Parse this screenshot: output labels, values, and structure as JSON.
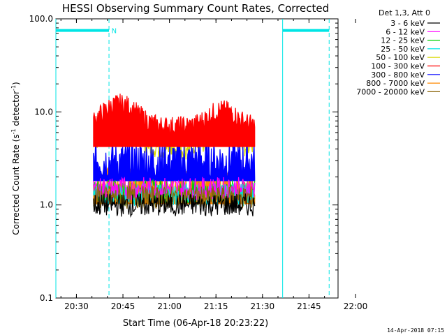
{
  "chart_data": {
    "type": "line",
    "title": "HESSI Observing Summary Count Rates, Corrected",
    "xlabel": "Start Time (06-Apr-18 20:23:22)",
    "ylabel": "Corrected Count Rate (s",
    "ylabel_sup1": "-1",
    "ylabel_mid": " detector",
    "ylabel_sup2": "-1",
    "ylabel_end": ")",
    "yscale": "log",
    "ylim": [
      0.1,
      100.0
    ],
    "xlim_minutes": [
      -6.63,
      84.37
    ],
    "x_ticks": [
      {
        "label": "20:30",
        "minutes": 0
      },
      {
        "label": "20:45",
        "minutes": 15
      },
      {
        "label": "21:00",
        "minutes": 30
      },
      {
        "label": "21:15",
        "minutes": 45
      },
      {
        "label": "21:30",
        "minutes": 60
      },
      {
        "label": "21:45",
        "minutes": 75
      },
      {
        "label": "22:00",
        "minutes": 90
      }
    ],
    "y_ticks": [
      {
        "label": "100.0",
        "value": 100
      },
      {
        "label": "10.0",
        "value": 10
      },
      {
        "label": "1.0",
        "value": 1
      },
      {
        "label": "0.1",
        "value": 0.1
      }
    ],
    "legend_title": "Det 1,3, Att 0",
    "legend_position": "top-right",
    "series": [
      {
        "name": "3 - 6 keV",
        "color": "#000000",
        "level": 1.0
      },
      {
        "name": "6 - 12 keV",
        "color": "#ff00ff",
        "level": 1.5
      },
      {
        "name": "12 - 25 keV",
        "color": "#00d000",
        "level": 1.4
      },
      {
        "name": "25 - 50 keV",
        "color": "#00e5e5",
        "level": 1.3
      },
      {
        "name": "50 - 100 keV",
        "color": "#d8d800",
        "level": 4.0
      },
      {
        "name": "100 - 300 keV",
        "color": "#ff0000",
        "level": 7.0
      },
      {
        "name": "300 - 800 keV",
        "color": "#0000ff",
        "level": 3.0
      },
      {
        "name": "800 - 7000 keV",
        "color": "#ff8800",
        "level": 1.7
      },
      {
        "name": "7000 - 20000 keV",
        "color": "#8b6508",
        "level": 1.2
      }
    ],
    "data_window_minutes": [
      5.5,
      57.5
    ],
    "annotations": [
      {
        "text": "N",
        "minutes": 11.3
      }
    ],
    "night_bars_minutes": [
      [
        -6.63,
        10.5
      ],
      [
        66.5,
        81.5
      ]
    ],
    "vertical_lines": [
      {
        "minutes": -6.63,
        "style": "solid"
      },
      {
        "minutes": 10.5,
        "style": "dashed"
      },
      {
        "minutes": 66.5,
        "style": "solid"
      },
      {
        "minutes": 81.5,
        "style": "dashed"
      }
    ]
  },
  "footer": "14-Apr-2018 07:15"
}
